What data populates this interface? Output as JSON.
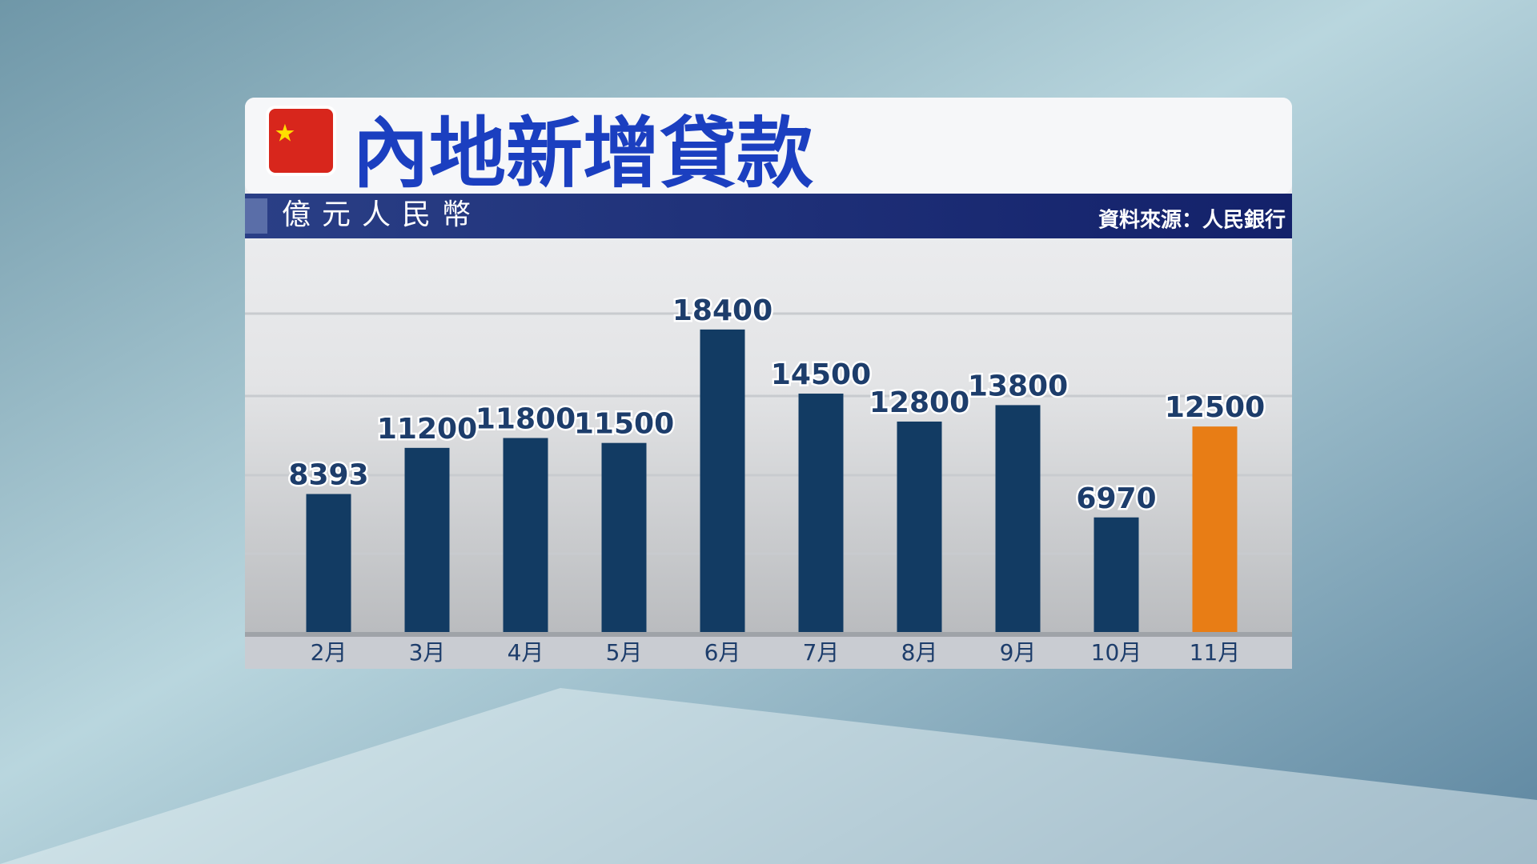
{
  "chart_data": {
    "type": "bar",
    "title": "內地新增貸款",
    "subtitle": "億元人民幣",
    "source": "資料來源：人民銀行",
    "categories": [
      "2月",
      "3月",
      "4月",
      "5月",
      "6月",
      "7月",
      "8月",
      "9月",
      "10月",
      "11月"
    ],
    "values": [
      8393,
      11200,
      11800,
      11500,
      18400,
      14500,
      12800,
      13800,
      6970,
      12500
    ],
    "colors": [
      "#123b63",
      "#123b63",
      "#123b63",
      "#123b63",
      "#123b63",
      "#123b63",
      "#123b63",
      "#123b63",
      "#123b63",
      "#e87d15"
    ],
    "ylim": [
      0,
      20000
    ],
    "grid": true
  }
}
